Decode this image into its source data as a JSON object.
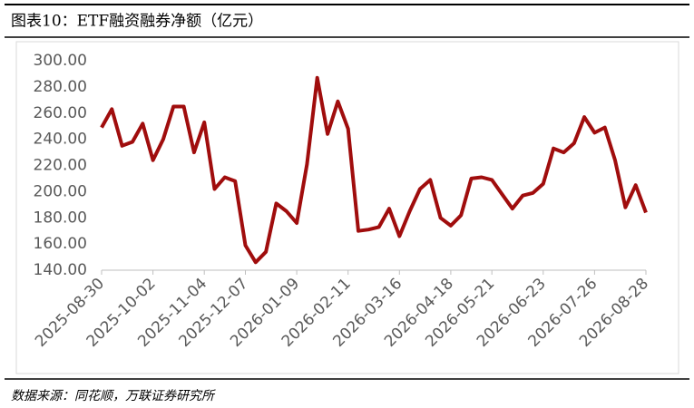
{
  "chart_data": {
    "type": "line",
    "title": "图表10：ETF融资融券净额（亿元）",
    "source": "数据来源：同花顺，万联证券研究所",
    "categories": [
      "2025-08-30",
      null,
      null,
      null,
      null,
      "2025-10-02",
      null,
      null,
      null,
      null,
      "2025-11-04",
      null,
      null,
      null,
      "2025-12-07",
      null,
      null,
      null,
      null,
      "2026-01-09",
      null,
      null,
      null,
      null,
      "2026-02-11",
      null,
      null,
      null,
      null,
      "2026-03-16",
      null,
      null,
      null,
      null,
      "2026-04-18",
      null,
      null,
      null,
      "2026-05-21",
      null,
      null,
      null,
      null,
      "2026-06-23",
      null,
      null,
      null,
      null,
      "2026-07-26",
      null,
      null,
      null,
      null,
      "2026-08-28"
    ],
    "series": [
      {
        "name": "ETF融资融券净额",
        "color": "#a00d0d",
        "values": [
          249,
          263,
          235,
          238,
          252,
          224,
          240,
          265,
          265,
          230,
          253,
          202,
          211,
          208,
          159,
          146,
          154,
          191,
          185,
          176,
          221,
          287,
          244,
          269,
          248,
          170,
          171,
          173,
          187,
          166,
          185,
          202,
          209,
          180,
          174,
          182,
          210,
          211,
          209,
          198,
          187,
          197,
          199,
          206,
          233,
          230,
          237,
          257,
          245,
          249,
          224,
          188,
          205,
          184
        ]
      }
    ],
    "ylim": [
      140,
      300
    ],
    "yticks": [
      {
        "value": 140,
        "label": "140.00"
      },
      {
        "value": 160,
        "label": "160.00"
      },
      {
        "value": 180,
        "label": "180.00"
      },
      {
        "value": 200,
        "label": "200.00"
      },
      {
        "value": 220,
        "label": "220.00"
      },
      {
        "value": 240,
        "label": "240.00"
      },
      {
        "value": 260,
        "label": "260.00"
      },
      {
        "value": 280,
        "label": "280.00"
      },
      {
        "value": 300,
        "label": "300.00"
      }
    ]
  }
}
